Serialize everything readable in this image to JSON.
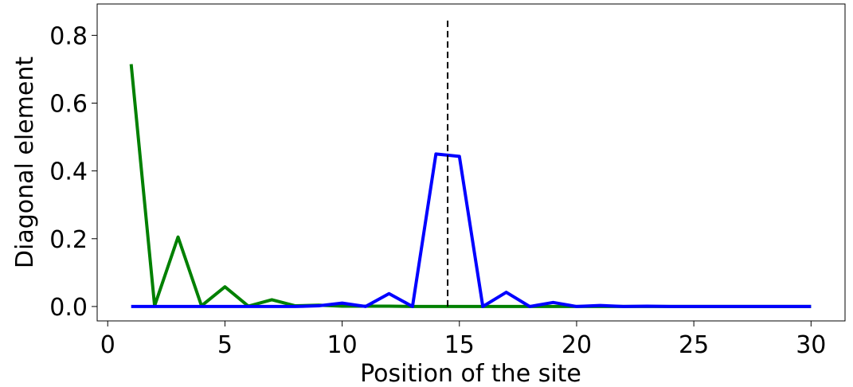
{
  "chart_data": {
    "type": "line",
    "x_label": "Position of the site",
    "y_label": "Diagonal element",
    "x": [
      1,
      2,
      3,
      4,
      5,
      6,
      7,
      8,
      9,
      10,
      11,
      12,
      13,
      14,
      15,
      16,
      17,
      18,
      19,
      20,
      21,
      22,
      23,
      24,
      25,
      26,
      27,
      28,
      29,
      30
    ],
    "series": [
      {
        "color": "#008000",
        "values": [
          0.715,
          0.002,
          0.205,
          0.002,
          0.058,
          0.001,
          0.02,
          0.002,
          0.004,
          0.001,
          0.001,
          0.001,
          0,
          0,
          0,
          0,
          0,
          0,
          0,
          0,
          0,
          0,
          0,
          0,
          0,
          0,
          0,
          0,
          0,
          0
        ]
      },
      {
        "color": "#0000ff",
        "values": [
          0,
          0,
          0,
          0,
          0,
          0,
          0,
          0,
          0.002,
          0.01,
          0,
          0.038,
          0,
          0.45,
          0.443,
          0,
          0.042,
          0,
          0.012,
          0,
          0.003,
          0,
          0.001,
          0,
          0,
          0,
          0,
          0,
          0,
          0
        ]
      }
    ],
    "vline": {
      "x": 14.5,
      "ymin": 0,
      "ymax": 0.85,
      "color": "#000000"
    },
    "xlim": [
      -0.45,
      31.45
    ],
    "ylim": [
      -0.0425,
      0.8925
    ],
    "xticks": [
      0,
      5,
      10,
      15,
      20,
      25,
      30
    ],
    "yticks": [
      {
        "value": 0,
        "label": "0.0"
      },
      0.2,
      0.4,
      0.6,
      0.8
    ]
  }
}
